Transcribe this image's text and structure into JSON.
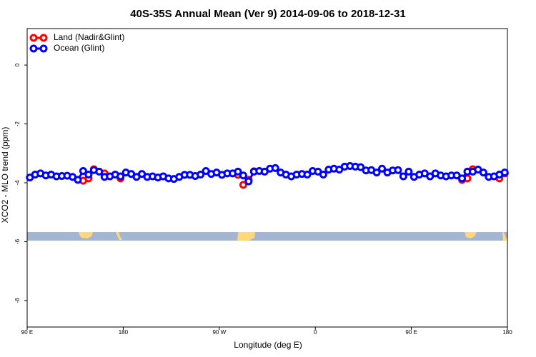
{
  "chart_data": {
    "type": "line",
    "title": "40S-35S Annual Mean (Ver 9)   2014-09-06 to 2018-12-31",
    "x_label": "Longitude (deg E)",
    "y_label": "XCO2 - MLO trend (ppm)",
    "xlim": [
      90,
      540
    ],
    "ylim": [
      -8.9,
      1.24
    ],
    "xticks": [
      {
        "value": 90,
        "label": "90 E"
      },
      180,
      {
        "value": 270,
        "label": "90 W"
      },
      {
        "value": 360,
        "label": "0"
      },
      {
        "value": 450,
        "label": "90 E"
      },
      {
        "value": 540,
        "label": "180"
      }
    ],
    "yticks": [
      0,
      -2,
      -4,
      -6,
      -8
    ],
    "legend": "topleft",
    "series": [
      {
        "name": "Land (Nadir&Glint)",
        "color": "#ff0000",
        "x": [
          142.5,
          147.5,
          152.5,
          162.5,
          177.5,
          287.5,
          292.5,
          297.5,
          302.5,
          497.5,
          502.5,
          507.5,
          532.5,
          537.5
        ],
        "values": [
          -3.93,
          -3.85,
          -3.54,
          -3.68,
          -3.85,
          -3.73,
          -4.07,
          -3.9,
          -3.61,
          -3.9,
          -3.85,
          -3.54,
          -3.85,
          -3.68
        ]
      },
      {
        "name": "Ocean (Glint)",
        "color": "#0000ff",
        "x": [
          92.5,
          97.5,
          102.5,
          107.5,
          112.5,
          117.5,
          122.5,
          127.5,
          132.5,
          137.5,
          142.5,
          147.5,
          152.5,
          157.5,
          162.5,
          167.5,
          172.5,
          177.5,
          182.5,
          187.5,
          192.5,
          197.5,
          202.5,
          207.5,
          212.5,
          217.5,
          222.5,
          227.5,
          232.5,
          237.5,
          242.5,
          247.5,
          252.5,
          257.5,
          262.5,
          267.5,
          272.5,
          277.5,
          282.5,
          287.5,
          292.5,
          297.5,
          302.5,
          307.5,
          312.5,
          317.5,
          322.5,
          327.5,
          332.5,
          337.5,
          342.5,
          347.5,
          352.5,
          357.5,
          362.5,
          367.5,
          372.5,
          377.5,
          382.5,
          387.5,
          392.5,
          397.5,
          402.5,
          407.5,
          412.5,
          417.5,
          422.5,
          427.5,
          432.5,
          437.5,
          442.5,
          447.5,
          452.5,
          457.5,
          462.5,
          467.5,
          472.5,
          477.5,
          482.5,
          487.5,
          492.5,
          497.5,
          502.5,
          507.5,
          512.5,
          517.5,
          522.5,
          527.5,
          532.5,
          537.5
        ],
        "values": [
          -3.82,
          -3.72,
          -3.68,
          -3.75,
          -3.72,
          -3.78,
          -3.77,
          -3.76,
          -3.8,
          -3.9,
          -3.6,
          -3.72,
          -3.57,
          -3.62,
          -3.8,
          -3.78,
          -3.72,
          -3.78,
          -3.65,
          -3.7,
          -3.8,
          -3.7,
          -3.8,
          -3.78,
          -3.82,
          -3.78,
          -3.85,
          -3.87,
          -3.8,
          -3.73,
          -3.73,
          -3.77,
          -3.72,
          -3.6,
          -3.7,
          -3.65,
          -3.73,
          -3.68,
          -3.68,
          -3.62,
          -3.75,
          -3.95,
          -3.62,
          -3.6,
          -3.62,
          -3.52,
          -3.5,
          -3.65,
          -3.72,
          -3.78,
          -3.72,
          -3.7,
          -3.72,
          -3.6,
          -3.62,
          -3.72,
          -3.55,
          -3.52,
          -3.55,
          -3.45,
          -3.43,
          -3.45,
          -3.47,
          -3.58,
          -3.57,
          -3.65,
          -3.52,
          -3.65,
          -3.58,
          -3.57,
          -3.78,
          -3.62,
          -3.8,
          -3.72,
          -3.68,
          -3.78,
          -3.68,
          -3.75,
          -3.78,
          -3.75,
          -3.75,
          -3.85,
          -3.62,
          -3.62,
          -3.55,
          -3.65,
          -3.8,
          -3.78,
          -3.72,
          -3.65
        ]
      }
    ]
  }
}
